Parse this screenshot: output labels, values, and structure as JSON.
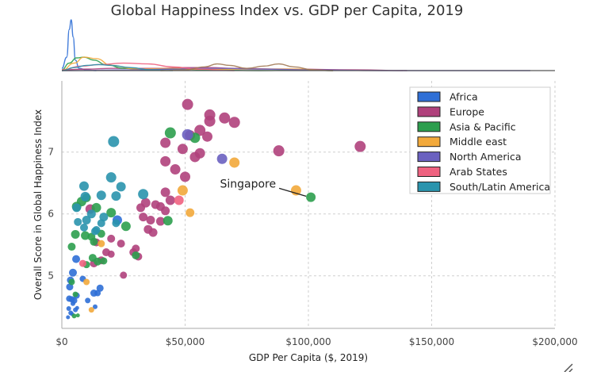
{
  "chart_data": {
    "type": "scatter",
    "title": "Global Happiness Index vs. GDP per Capita, 2019",
    "xlabel": "GDP Per Capita ($, 2019)",
    "ylabel": "Overall Score in Global Happiness Index",
    "xlim": [
      0,
      200000
    ],
    "ylim": [
      4.15,
      8.15
    ],
    "xticks": [
      0,
      50000,
      100000,
      150000,
      200000
    ],
    "xtick_labels": [
      "$0",
      "$50,000",
      "$100,000",
      "$150,000",
      "$200,000"
    ],
    "yticks": [
      5,
      6,
      7
    ],
    "ytick_labels": [
      "5",
      "6",
      "7"
    ],
    "grid": true,
    "legend_position": "top-right",
    "marginal_density_top": true,
    "annotations": [
      {
        "text": "Singapore",
        "x": 101000,
        "y": 6.26
      }
    ],
    "series": [
      {
        "name": "Africa",
        "color": "#2f6fd6",
        "points": [
          [
            3000,
            4.63,
            4
          ],
          [
            4000,
            4.62,
            4
          ],
          [
            5000,
            4.6,
            4
          ],
          [
            4500,
            4.55,
            3
          ],
          [
            2800,
            4.47,
            3
          ],
          [
            5500,
            4.45,
            3
          ],
          [
            3600,
            4.4,
            3
          ],
          [
            2500,
            4.33,
            2.5
          ],
          [
            4200,
            4.38,
            2.5
          ],
          [
            6200,
            4.48,
            2.5
          ],
          [
            4500,
            5.05,
            5
          ],
          [
            3500,
            4.93,
            4.5
          ],
          [
            5800,
            5.27,
            5
          ],
          [
            6000,
            4.68,
            4
          ],
          [
            13000,
            4.72,
            4.5
          ],
          [
            15500,
            4.8,
            4.5
          ],
          [
            14500,
            4.72,
            4
          ],
          [
            10500,
            4.6,
            3.5
          ],
          [
            22500,
            5.9,
            6
          ],
          [
            8500,
            4.95,
            4
          ],
          [
            13500,
            4.5,
            3
          ],
          [
            3200,
            4.82,
            4.5
          ]
        ]
      },
      {
        "name": "Europe",
        "color": "#b0417c",
        "points": [
          [
            51000,
            7.77,
            7
          ],
          [
            60000,
            7.6,
            7
          ],
          [
            66000,
            7.55,
            7
          ],
          [
            70000,
            7.48,
            7
          ],
          [
            60000,
            7.5,
            7
          ],
          [
            56000,
            7.35,
            7
          ],
          [
            52000,
            7.27,
            6.5
          ],
          [
            59000,
            7.25,
            6.5
          ],
          [
            49000,
            7.05,
            6.5
          ],
          [
            42000,
            7.15,
            6.5
          ],
          [
            56000,
            6.98,
            6.5
          ],
          [
            54000,
            6.92,
            6.5
          ],
          [
            88000,
            7.02,
            7
          ],
          [
            121000,
            7.09,
            7
          ],
          [
            42000,
            6.85,
            6.5
          ],
          [
            46000,
            6.72,
            6.5
          ],
          [
            50000,
            6.6,
            6.5
          ],
          [
            42000,
            6.35,
            6
          ],
          [
            44000,
            6.22,
            6
          ],
          [
            38000,
            6.15,
            5.5
          ],
          [
            40000,
            6.12,
            5.5
          ],
          [
            42000,
            6.05,
            5.5
          ],
          [
            36000,
            5.9,
            5.5
          ],
          [
            32000,
            6.1,
            5.5
          ],
          [
            34000,
            6.18,
            6
          ],
          [
            33000,
            5.95,
            5.5
          ],
          [
            40000,
            5.88,
            5.5
          ],
          [
            35000,
            5.75,
            5.5
          ],
          [
            37000,
            5.7,
            5.5
          ],
          [
            20000,
            5.6,
            5
          ],
          [
            24000,
            5.52,
            5
          ],
          [
            30000,
            5.44,
            5
          ],
          [
            29000,
            5.38,
            5
          ],
          [
            31000,
            5.31,
            5
          ],
          [
            14000,
            5.54,
            5
          ],
          [
            18000,
            5.38,
            5
          ],
          [
            20000,
            5.35,
            4.5
          ],
          [
            16000,
            5.25,
            5
          ],
          [
            13000,
            5.2,
            5
          ],
          [
            25000,
            5.01,
            4.5
          ],
          [
            11500,
            6.08,
            6
          ]
        ]
      },
      {
        "name": "Asia & Pacific",
        "color": "#2c9e4e",
        "points": [
          [
            44000,
            7.31,
            7
          ],
          [
            54000,
            7.23,
            6.5
          ],
          [
            101000,
            6.27,
            6
          ],
          [
            8000,
            6.2,
            6
          ],
          [
            6000,
            6.12,
            6
          ],
          [
            10000,
            6.26,
            5.5
          ],
          [
            14000,
            6.1,
            6
          ],
          [
            20000,
            6.02,
            6
          ],
          [
            26000,
            5.8,
            6
          ],
          [
            43000,
            5.89,
            6
          ],
          [
            5500,
            5.67,
            5.5
          ],
          [
            9500,
            5.65,
            5.5
          ],
          [
            16000,
            5.68,
            5
          ],
          [
            12000,
            5.63,
            5
          ],
          [
            13000,
            5.55,
            5
          ],
          [
            4000,
            5.47,
            5
          ],
          [
            12500,
            5.29,
            5
          ],
          [
            14500,
            5.23,
            5
          ],
          [
            17000,
            5.24,
            4.5
          ],
          [
            30000,
            5.33,
            5
          ],
          [
            10000,
            5.18,
            4.5
          ],
          [
            4000,
            4.9,
            4
          ],
          [
            5500,
            4.7,
            3.5
          ],
          [
            5000,
            4.35,
            3
          ],
          [
            6500,
            4.36,
            2.5
          ]
        ]
      },
      {
        "name": "Middle east",
        "color": "#f2a93b",
        "points": [
          [
            95000,
            6.38,
            6.5
          ],
          [
            70000,
            6.83,
            6.5
          ],
          [
            49000,
            6.38,
            6.5
          ],
          [
            52000,
            6.02,
            5.5
          ],
          [
            16000,
            5.52,
            4.5
          ],
          [
            10000,
            4.9,
            4
          ],
          [
            12000,
            4.45,
            3.5
          ]
        ]
      },
      {
        "name": "North America",
        "color": "#6a61c0",
        "points": [
          [
            51000,
            7.28,
            7
          ],
          [
            65000,
            6.89,
            6.5
          ]
        ]
      },
      {
        "name": "Arab States",
        "color": "#ef6280",
        "points": [
          [
            47500,
            6.22,
            6
          ],
          [
            8500,
            5.2,
            4.5
          ]
        ]
      },
      {
        "name": "South/Latin America",
        "color": "#2a94ad",
        "points": [
          [
            21000,
            7.17,
            7
          ],
          [
            20000,
            6.59,
            6.5
          ],
          [
            9000,
            6.45,
            6
          ],
          [
            24000,
            6.44,
            6
          ],
          [
            33000,
            6.32,
            6.5
          ],
          [
            16000,
            6.3,
            6
          ],
          [
            9500,
            6.28,
            6
          ],
          [
            22000,
            6.29,
            6
          ],
          [
            6000,
            6.1,
            5.5
          ],
          [
            12000,
            6.0,
            5.5
          ],
          [
            17000,
            5.95,
            5.5
          ],
          [
            10000,
            5.9,
            5.5
          ],
          [
            6500,
            5.87,
            5
          ],
          [
            16000,
            5.85,
            5
          ],
          [
            22000,
            5.85,
            5
          ],
          [
            14000,
            5.74,
            5
          ],
          [
            9000,
            5.78,
            5
          ],
          [
            13500,
            5.72,
            5
          ]
        ]
      }
    ],
    "density": [
      {
        "name": "Africa",
        "color": "#2f6fd6",
        "points": [
          [
            0,
            3
          ],
          [
            2000,
            18
          ],
          [
            3000,
            55
          ],
          [
            3800,
            68
          ],
          [
            4600,
            45
          ],
          [
            5500,
            14
          ],
          [
            7000,
            3
          ],
          [
            10000,
            1
          ],
          [
            14000,
            0
          ]
        ]
      },
      {
        "name": "Europe",
        "color": "#b0417c",
        "points": [
          [
            0,
            1
          ],
          [
            10000,
            2
          ],
          [
            20000,
            3
          ],
          [
            30000,
            3
          ],
          [
            40000,
            3
          ],
          [
            50000,
            4
          ],
          [
            60000,
            4
          ],
          [
            70000,
            3
          ],
          [
            90000,
            2
          ],
          [
            120000,
            1
          ],
          [
            140000,
            0
          ]
        ]
      },
      {
        "name": "Asia & Pacific",
        "color": "#2c9e4e",
        "points": [
          [
            0,
            1
          ],
          [
            3000,
            10
          ],
          [
            6000,
            17
          ],
          [
            9000,
            18
          ],
          [
            13000,
            14
          ],
          [
            18000,
            8
          ],
          [
            25000,
            3
          ],
          [
            35000,
            1
          ],
          [
            45000,
            2
          ],
          [
            60000,
            1
          ],
          [
            80000,
            0
          ],
          [
            100000,
            1
          ],
          [
            110000,
            0
          ]
        ]
      },
      {
        "name": "Middle east",
        "color": "#f2a93b",
        "points": [
          [
            0,
            0
          ],
          [
            5000,
            10
          ],
          [
            9000,
            18
          ],
          [
            14000,
            16
          ],
          [
            20000,
            7
          ],
          [
            30000,
            2
          ],
          [
            45000,
            3
          ],
          [
            55000,
            2
          ],
          [
            70000,
            2
          ],
          [
            95000,
            2
          ],
          [
            110000,
            0
          ]
        ]
      },
      {
        "name": "North America",
        "color": "#6a61c0",
        "points": [
          [
            0,
            0
          ],
          [
            30000,
            1
          ],
          [
            45000,
            2
          ],
          [
            55000,
            3
          ],
          [
            65000,
            3
          ],
          [
            80000,
            2
          ],
          [
            100000,
            1
          ],
          [
            130000,
            0
          ],
          [
            190000,
            0
          ]
        ]
      },
      {
        "name": "Arab States",
        "color": "#ef6280",
        "points": [
          [
            0,
            1
          ],
          [
            8000,
            6
          ],
          [
            15000,
            8
          ],
          [
            25000,
            10
          ],
          [
            35000,
            9
          ],
          [
            45000,
            5
          ],
          [
            55000,
            2
          ],
          [
            70000,
            0
          ]
        ]
      },
      {
        "name": "South/Latin America",
        "color": "#2a94ad",
        "points": [
          [
            0,
            0
          ],
          [
            5000,
            4
          ],
          [
            10000,
            7
          ],
          [
            15000,
            8
          ],
          [
            20000,
            7
          ],
          [
            28000,
            4
          ],
          [
            36000,
            1
          ],
          [
            45000,
            0
          ]
        ]
      },
      {
        "name": "Middle east",
        "color": "#a37a55",
        "points": [
          [
            40000,
            0
          ],
          [
            50000,
            1
          ],
          [
            58000,
            5
          ],
          [
            63000,
            9
          ],
          [
            68000,
            7
          ],
          [
            75000,
            3
          ],
          [
            82000,
            6
          ],
          [
            88000,
            9
          ],
          [
            94000,
            5
          ],
          [
            102000,
            1
          ],
          [
            110000,
            0
          ]
        ]
      }
    ]
  }
}
